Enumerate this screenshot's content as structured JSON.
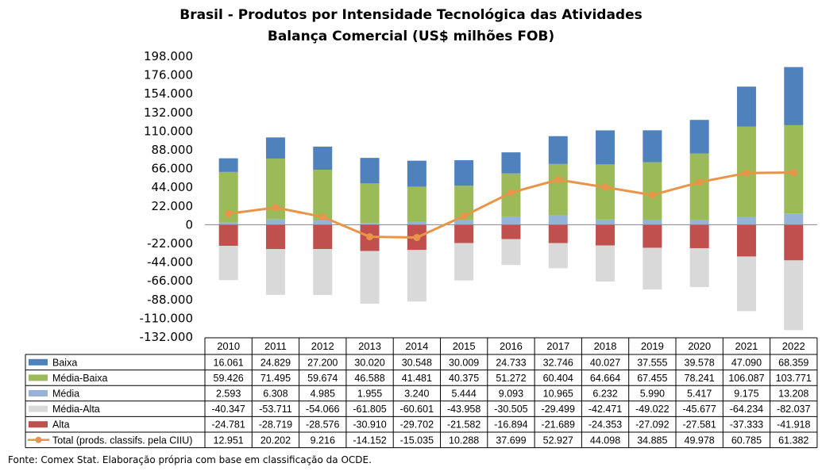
{
  "chart_data": {
    "type": "bar",
    "title": "Brasil - Produtos por Intensidade Tecnológica das Atividades",
    "subtitle": "Balança Comercial (US$ milhões FOB)",
    "categories": [
      "2010",
      "2011",
      "2012",
      "2013",
      "2014",
      "2015",
      "2016",
      "2017",
      "2018",
      "2019",
      "2020",
      "2021",
      "2022"
    ],
    "ylim": [
      -132000,
      198000
    ],
    "ytick_labels": [
      "198.000",
      "176.000",
      "154.000",
      "132.000",
      "110.000",
      "88.000",
      "66.000",
      "44.000",
      "22.000",
      "0",
      "-22.000",
      "-44.000",
      "-66.000",
      "-88.000",
      "-110.000",
      "-132.000"
    ],
    "ytick_values": [
      198000,
      176000,
      154000,
      132000,
      110000,
      88000,
      66000,
      44000,
      22000,
      0,
      -22000,
      -44000,
      -66000,
      -88000,
      -110000,
      -132000
    ],
    "stacked": true,
    "grid": false,
    "legend": "data-table",
    "series": [
      {
        "name": "Baixa",
        "kind": "bar",
        "color": "#4f81bd",
        "values": [
          16061,
          24829,
          27200,
          30020,
          30548,
          30009,
          24733,
          32746,
          40027,
          37555,
          39578,
          47090,
          68359
        ],
        "labels": [
          "16.061",
          "24.829",
          "27.200",
          "30.020",
          "30.548",
          "30.009",
          "24.733",
          "32.746",
          "40.027",
          "37.555",
          "39.578",
          "47.090",
          "68.359"
        ]
      },
      {
        "name": "Média-Baixa",
        "kind": "bar",
        "color": "#9bbb59",
        "values": [
          59426,
          71495,
          59674,
          46588,
          41481,
          40375,
          51272,
          60404,
          64664,
          67455,
          78241,
          106087,
          103771
        ],
        "labels": [
          "59.426",
          "71.495",
          "59.674",
          "46.588",
          "41.481",
          "40.375",
          "51.272",
          "60.404",
          "64.664",
          "67.455",
          "78.241",
          "106.087",
          "103.771"
        ]
      },
      {
        "name": "Média",
        "kind": "bar",
        "color": "#95b3d7",
        "values": [
          2593,
          6308,
          4985,
          1955,
          3240,
          5444,
          9093,
          10965,
          6232,
          5990,
          5417,
          9175,
          13208
        ],
        "labels": [
          "2.593",
          "6.308",
          "4.985",
          "1.955",
          "3.240",
          "5.444",
          "9.093",
          "10.965",
          "6.232",
          "5.990",
          "5.417",
          "9.175",
          "13.208"
        ]
      },
      {
        "name": "Média-Alta",
        "kind": "bar",
        "color": "#d9d9d9",
        "values": [
          -40347,
          -53711,
          -54066,
          -61805,
          -60601,
          -43958,
          -30505,
          -29499,
          -42471,
          -49022,
          -45677,
          -64234,
          -82037
        ],
        "labels": [
          "-40.347",
          "-53.711",
          "-54.066",
          "-61.805",
          "-60.601",
          "-43.958",
          "-30.505",
          "-29.499",
          "-42.471",
          "-49.022",
          "-45.677",
          "-64.234",
          "-82.037"
        ]
      },
      {
        "name": "Alta",
        "kind": "bar",
        "color": "#c0504d",
        "values": [
          -24781,
          -28719,
          -28576,
          -30910,
          -29702,
          -21582,
          -16894,
          -21689,
          -24353,
          -27092,
          -27581,
          -37333,
          -41918
        ],
        "labels": [
          "-24.781",
          "-28.719",
          "-28.576",
          "-30.910",
          "-29.702",
          "-21.582",
          "-16.894",
          "-21.689",
          "-24.353",
          "-27.092",
          "-27.581",
          "-37.333",
          "-41.918"
        ]
      },
      {
        "name": "Total (prods. classifs. pela CIIU)",
        "kind": "line",
        "color": "#e8954a",
        "values": [
          12951,
          20202,
          9216,
          -14152,
          -15035,
          10288,
          37699,
          52927,
          44098,
          34885,
          49978,
          60785,
          61382
        ],
        "labels": [
          "12.951",
          "20.202",
          "9.216",
          "-14.152",
          "-15.035",
          "10.288",
          "37.699",
          "52.927",
          "44.098",
          "34.885",
          "49.978",
          "60.785",
          "61.382"
        ]
      }
    ]
  },
  "source_note": "Fonte:  Comex Stat. Elaboração própria com base em classificação da OCDE."
}
